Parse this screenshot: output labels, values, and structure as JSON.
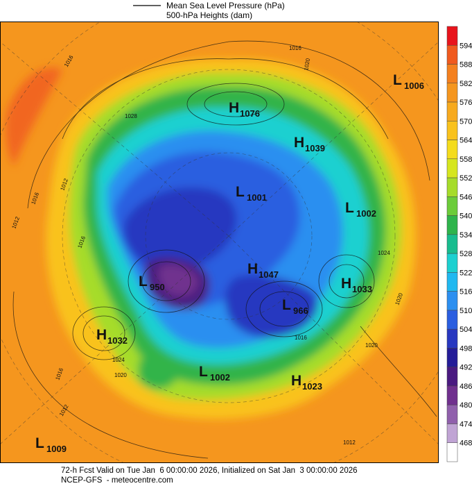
{
  "legend": {
    "items": [
      "Mean Sea Level Pressure (hPa)",
      "500-hPa Heights (dam)"
    ]
  },
  "colorbar": {
    "ticks": [
      594,
      588,
      582,
      576,
      570,
      564,
      558,
      552,
      546,
      540,
      534,
      528,
      522,
      516,
      510,
      504,
      498,
      492,
      486,
      480,
      474,
      468
    ],
    "colors": [
      "#e8141c",
      "#f05a1e",
      "#f4801e",
      "#f5961e",
      "#f7aa1e",
      "#f9c21c",
      "#f4dc1c",
      "#d6e61e",
      "#a6dc2a",
      "#6ccc3a",
      "#2eb44c",
      "#18bc8e",
      "#1cd0d0",
      "#20b8f0",
      "#2c8ff0",
      "#2a5ee0",
      "#2838c0",
      "#241c98",
      "#4a1a80",
      "#70308e",
      "#9060ac",
      "#c0a4d4",
      "#ffffff"
    ]
  },
  "centers": [
    {
      "letter": "L",
      "value": "1006"
    },
    {
      "letter": "H",
      "value": "1076"
    },
    {
      "letter": "H",
      "value": "1039"
    },
    {
      "letter": "L",
      "value": "1001"
    },
    {
      "letter": "L",
      "value": "1002"
    },
    {
      "letter": "H",
      "value": "1047"
    },
    {
      "letter": "L",
      "value": "966"
    },
    {
      "letter": "H",
      "value": "1033"
    },
    {
      "letter": "L",
      "value": "950"
    },
    {
      "letter": "H",
      "value": "1032"
    },
    {
      "letter": "L",
      "value": "1002"
    },
    {
      "letter": "H",
      "value": "1023"
    },
    {
      "letter": "L",
      "value": "1009"
    }
  ],
  "isobar_labels": [
    "1016",
    "1016",
    "1020",
    "1028",
    "1012",
    "1016",
    "1012",
    "1024",
    "1020",
    "1024",
    "1016",
    "1012",
    "1016",
    "1020",
    "1016",
    "1020",
    "1012"
  ],
  "footer": {
    "line1": "72-h Fcst Valid on Tue Jan  6 00:00:00 2026, Initialized on Sat Jan  3 00:00:00 2026",
    "line2": "NCEP-GFS  - meteocentre.com"
  }
}
